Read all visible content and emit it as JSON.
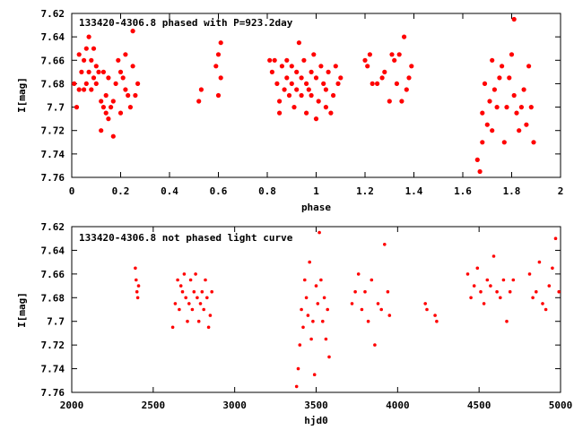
{
  "chart_data": [
    {
      "type": "scatter",
      "title": "133420-4306.8 phased with P=923.2day",
      "xlabel": "phase",
      "ylabel": "I[mag]",
      "xlim": [
        0,
        2
      ],
      "ylim": [
        7.62,
        7.76
      ],
      "y_inverted": true,
      "xticks": [
        "0",
        "0.2",
        "0.4",
        "0.6",
        "0.8",
        "1",
        "1.2",
        "1.4",
        "1.6",
        "1.8",
        "2"
      ],
      "xtick_values": [
        0,
        0.2,
        0.4,
        0.6,
        0.8,
        1.0,
        1.2,
        1.4,
        1.6,
        1.8,
        2.0
      ],
      "yticks": [
        "7.62",
        "7.64",
        "7.66",
        "7.68",
        "7.7",
        "7.72",
        "7.74",
        "7.76"
      ],
      "ytick_values": [
        7.62,
        7.64,
        7.66,
        7.68,
        7.7,
        7.72,
        7.74,
        7.76
      ],
      "grid": false,
      "marker_color": "#ff0000",
      "x": [
        0.01,
        0.02,
        0.03,
        0.03,
        0.04,
        0.05,
        0.05,
        0.06,
        0.06,
        0.07,
        0.07,
        0.08,
        0.08,
        0.09,
        0.09,
        0.1,
        0.1,
        0.11,
        0.12,
        0.12,
        0.13,
        0.13,
        0.14,
        0.14,
        0.15,
        0.15,
        0.16,
        0.17,
        0.17,
        0.18,
        0.19,
        0.2,
        0.2,
        0.21,
        0.22,
        0.22,
        0.23,
        0.24,
        0.25,
        0.25,
        0.26,
        0.27,
        0.52,
        0.53,
        0.59,
        0.6,
        0.6,
        0.61,
        0.61,
        0.81,
        0.82,
        0.83,
        0.84,
        0.85,
        0.85,
        0.86,
        0.87,
        0.88,
        0.88,
        0.89,
        0.9,
        0.9,
        0.91,
        0.92,
        0.92,
        0.93,
        0.94,
        0.94,
        0.95,
        0.96,
        0.96,
        0.97,
        0.98,
        0.98,
        0.99,
        1.0,
        1.0,
        1.01,
        1.02,
        1.03,
        1.04,
        1.04,
        1.05,
        1.06,
        1.07,
        1.08,
        1.09,
        1.1,
        1.2,
        1.21,
        1.22,
        1.23,
        1.25,
        1.27,
        1.28,
        1.3,
        1.31,
        1.32,
        1.33,
        1.34,
        1.35,
        1.36,
        1.37,
        1.38,
        1.39,
        1.66,
        1.67,
        1.68,
        1.68,
        1.69,
        1.7,
        1.71,
        1.72,
        1.72,
        1.73,
        1.74,
        1.75,
        1.76,
        1.77,
        1.78,
        1.79,
        1.8,
        1.81,
        1.81,
        1.82,
        1.83,
        1.84,
        1.85,
        1.86,
        1.87,
        1.88,
        1.89
      ],
      "y": [
        7.68,
        7.7,
        7.685,
        7.655,
        7.67,
        7.685,
        7.66,
        7.68,
        7.65,
        7.67,
        7.64,
        7.66,
        7.685,
        7.675,
        7.65,
        7.68,
        7.665,
        7.67,
        7.695,
        7.72,
        7.7,
        7.67,
        7.705,
        7.69,
        7.71,
        7.675,
        7.7,
        7.695,
        7.725,
        7.68,
        7.66,
        7.67,
        7.705,
        7.675,
        7.685,
        7.655,
        7.69,
        7.7,
        7.635,
        7.665,
        7.69,
        7.68,
        7.695,
        7.685,
        7.665,
        7.69,
        7.655,
        7.675,
        7.645,
        7.66,
        7.67,
        7.66,
        7.68,
        7.695,
        7.705,
        7.665,
        7.685,
        7.675,
        7.66,
        7.69,
        7.68,
        7.665,
        7.7,
        7.685,
        7.67,
        7.645,
        7.69,
        7.675,
        7.66,
        7.705,
        7.68,
        7.685,
        7.67,
        7.69,
        7.655,
        7.71,
        7.675,
        7.695,
        7.665,
        7.68,
        7.7,
        7.685,
        7.67,
        7.705,
        7.69,
        7.665,
        7.68,
        7.675,
        7.66,
        7.665,
        7.655,
        7.68,
        7.68,
        7.675,
        7.67,
        7.695,
        7.655,
        7.66,
        7.68,
        7.655,
        7.695,
        7.64,
        7.685,
        7.675,
        7.665,
        7.745,
        7.755,
        7.73,
        7.705,
        7.68,
        7.715,
        7.695,
        7.66,
        7.72,
        7.685,
        7.7,
        7.675,
        7.665,
        7.73,
        7.7,
        7.675,
        7.655,
        7.625,
        7.69,
        7.705,
        7.72,
        7.7,
        7.685,
        7.715,
        7.665,
        7.7,
        7.73
      ]
    },
    {
      "type": "scatter",
      "title": "133420-4306.8 not phased light curve",
      "xlabel": "hjd0",
      "ylabel": "I[mag]",
      "xlim": [
        2000,
        5000
      ],
      "ylim": [
        7.62,
        7.76
      ],
      "y_inverted": true,
      "xticks": [
        "2000",
        "2500",
        "3000",
        "3500",
        "4000",
        "4500",
        "5000"
      ],
      "xtick_values": [
        2000,
        2500,
        3000,
        3500,
        4000,
        4500,
        5000
      ],
      "yticks": [
        "7.62",
        "7.64",
        "7.66",
        "7.68",
        "7.7",
        "7.72",
        "7.74",
        "7.76"
      ],
      "ytick_values": [
        7.62,
        7.64,
        7.66,
        7.68,
        7.7,
        7.72,
        7.74,
        7.76
      ],
      "grid": false,
      "marker_color": "#ff0000",
      "x": [
        2390,
        2395,
        2400,
        2405,
        2410,
        2620,
        2635,
        2650,
        2660,
        2670,
        2680,
        2690,
        2700,
        2710,
        2720,
        2730,
        2740,
        2750,
        2760,
        2770,
        2780,
        2790,
        2800,
        2810,
        2820,
        2830,
        2840,
        2850,
        2860,
        3380,
        3390,
        3400,
        3410,
        3420,
        3430,
        3440,
        3450,
        3460,
        3470,
        3480,
        3490,
        3500,
        3510,
        3520,
        3530,
        3540,
        3550,
        3560,
        3570,
        3580,
        3720,
        3740,
        3760,
        3780,
        3800,
        3820,
        3840,
        3860,
        3880,
        3900,
        3920,
        3940,
        3950,
        4170,
        4180,
        4230,
        4240,
        4430,
        4450,
        4470,
        4490,
        4510,
        4530,
        4550,
        4570,
        4590,
        4610,
        4630,
        4650,
        4670,
        4690,
        4710,
        4810,
        4830,
        4850,
        4870,
        4890,
        4910,
        4930,
        4950,
        4970,
        4990
      ],
      "y": [
        7.655,
        7.665,
        7.675,
        7.68,
        7.67,
        7.705,
        7.685,
        7.665,
        7.69,
        7.67,
        7.675,
        7.66,
        7.68,
        7.7,
        7.685,
        7.665,
        7.69,
        7.675,
        7.66,
        7.68,
        7.7,
        7.685,
        7.675,
        7.69,
        7.665,
        7.68,
        7.705,
        7.695,
        7.675,
        7.755,
        7.74,
        7.72,
        7.69,
        7.705,
        7.665,
        7.68,
        7.695,
        7.65,
        7.715,
        7.7,
        7.745,
        7.67,
        7.685,
        7.625,
        7.665,
        7.7,
        7.68,
        7.715,
        7.69,
        7.73,
        7.685,
        7.675,
        7.66,
        7.69,
        7.675,
        7.7,
        7.665,
        7.72,
        7.685,
        7.69,
        7.635,
        7.675,
        7.695,
        7.685,
        7.69,
        7.695,
        7.7,
        7.66,
        7.68,
        7.67,
        7.655,
        7.675,
        7.685,
        7.665,
        7.67,
        7.645,
        7.675,
        7.68,
        7.665,
        7.7,
        7.675,
        7.665,
        7.66,
        7.68,
        7.675,
        7.65,
        7.685,
        7.69,
        7.67,
        7.655,
        7.63,
        7.675
      ]
    }
  ]
}
